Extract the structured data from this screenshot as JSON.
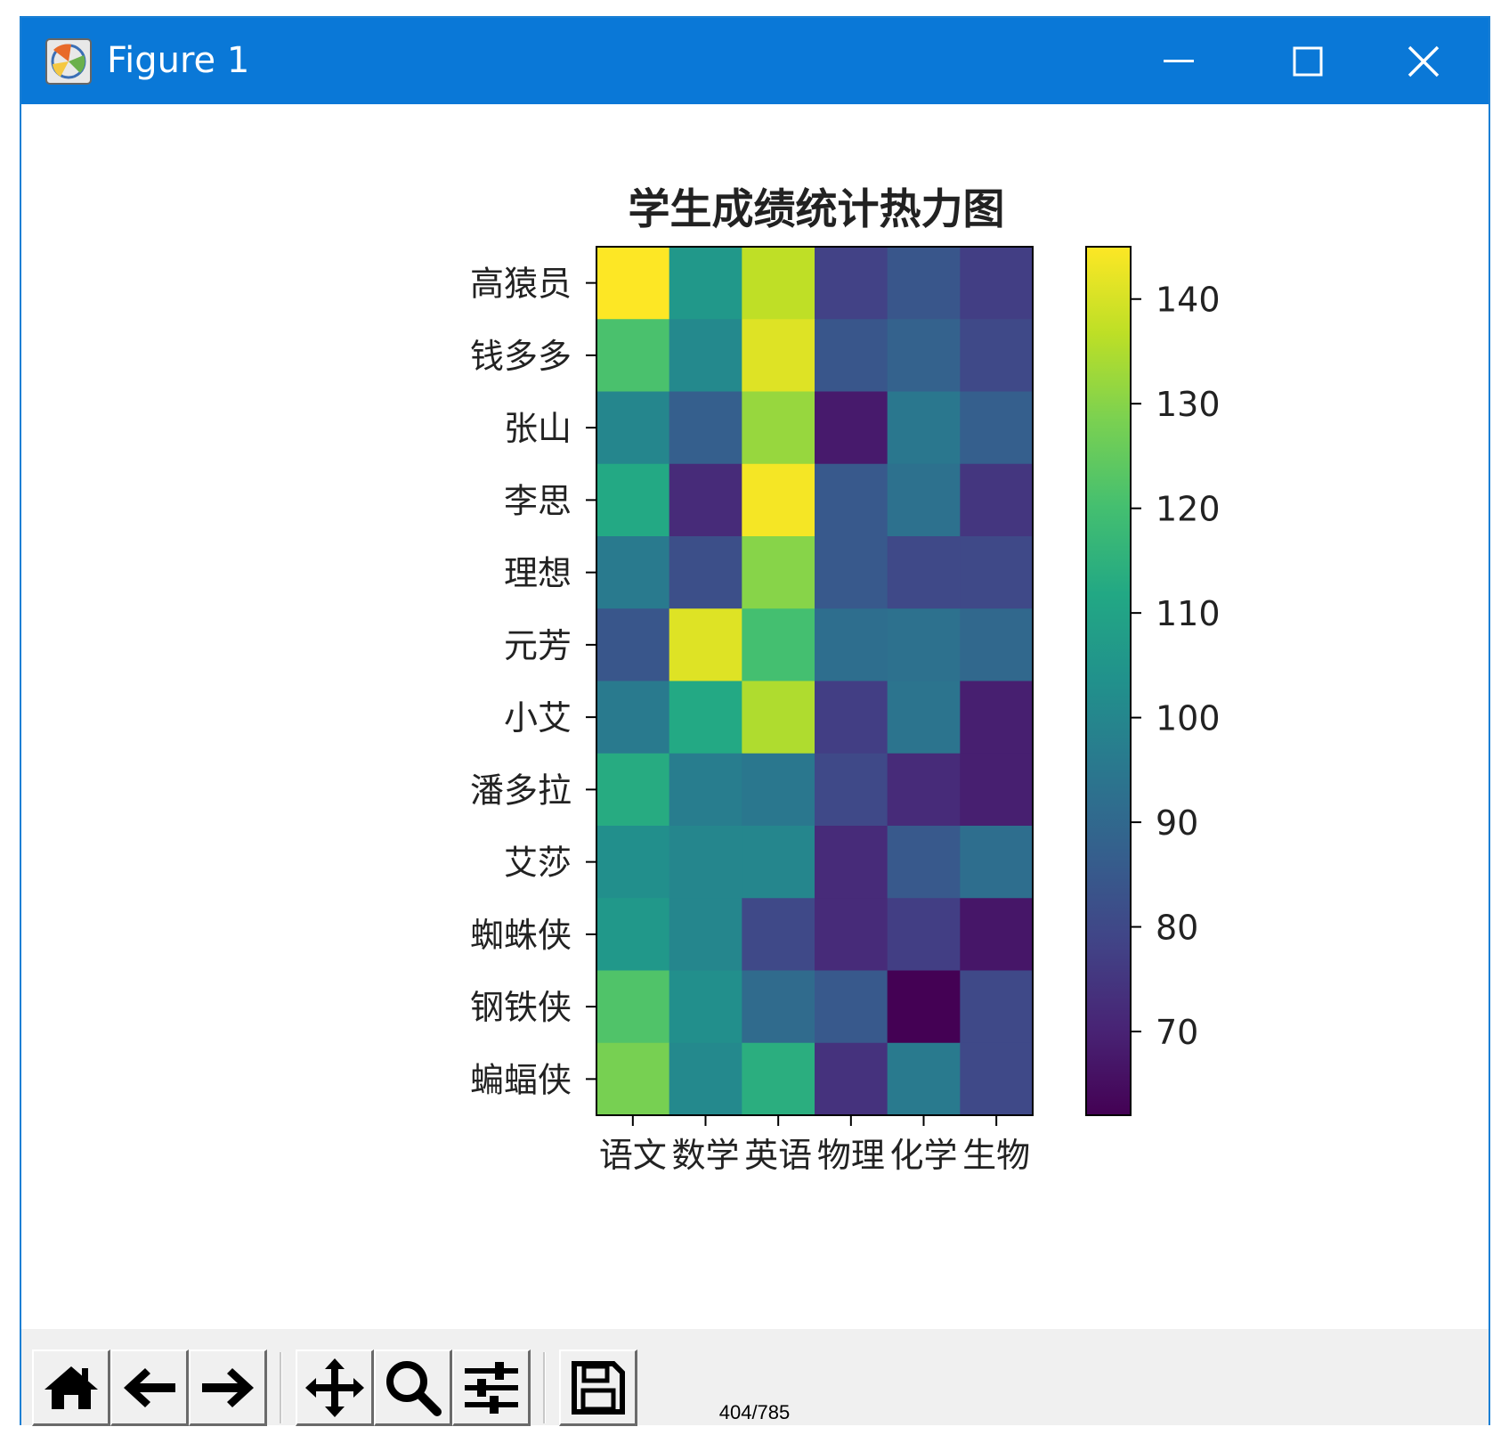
{
  "window": {
    "title": "Figure 1"
  },
  "toolbar": {
    "buttons": [
      {
        "name": "home-icon"
      },
      {
        "name": "back-arrow-icon"
      },
      {
        "name": "forward-arrow-icon"
      },
      {
        "name": "pan-icon"
      },
      {
        "name": "zoom-icon"
      },
      {
        "name": "configure-subplots-icon"
      },
      {
        "name": "save-icon"
      }
    ]
  },
  "footer": {
    "page_number": "404/785"
  },
  "chart_data": {
    "type": "heatmap",
    "title": "学生成绩统计热力图",
    "colormap": "viridis",
    "x_categories": [
      "语文",
      "数学",
      "英语",
      "物理",
      "化学",
      "生物"
    ],
    "y_categories": [
      "高猿员",
      "钱多多",
      "张山",
      "李思",
      "理想",
      "元芳",
      "小艾",
      "潘多拉",
      "艾莎",
      "蜘蛛侠",
      "钢铁侠",
      "蝙蝠侠"
    ],
    "values": [
      [
        145,
        106,
        137,
        78,
        84,
        77
      ],
      [
        121,
        101,
        141,
        84,
        88,
        80
      ],
      [
        100,
        87,
        132,
        68,
        95,
        87
      ],
      [
        112,
        72,
        144,
        85,
        93,
        75
      ],
      [
        96,
        82,
        130,
        85,
        80,
        80
      ],
      [
        84,
        141,
        120,
        92,
        93,
        90
      ],
      [
        96,
        112,
        135,
        77,
        94,
        69
      ],
      [
        113,
        97,
        95,
        80,
        72,
        69
      ],
      [
        103,
        100,
        100,
        72,
        85,
        92
      ],
      [
        106,
        100,
        80,
        72,
        77,
        67
      ],
      [
        122,
        103,
        91,
        85,
        62,
        80
      ],
      [
        128,
        101,
        114,
        74,
        96,
        80
      ]
    ],
    "colorbar": {
      "range": [
        62,
        145
      ],
      "ticks": [
        70,
        80,
        90,
        100,
        110,
        120,
        130,
        140
      ]
    }
  }
}
